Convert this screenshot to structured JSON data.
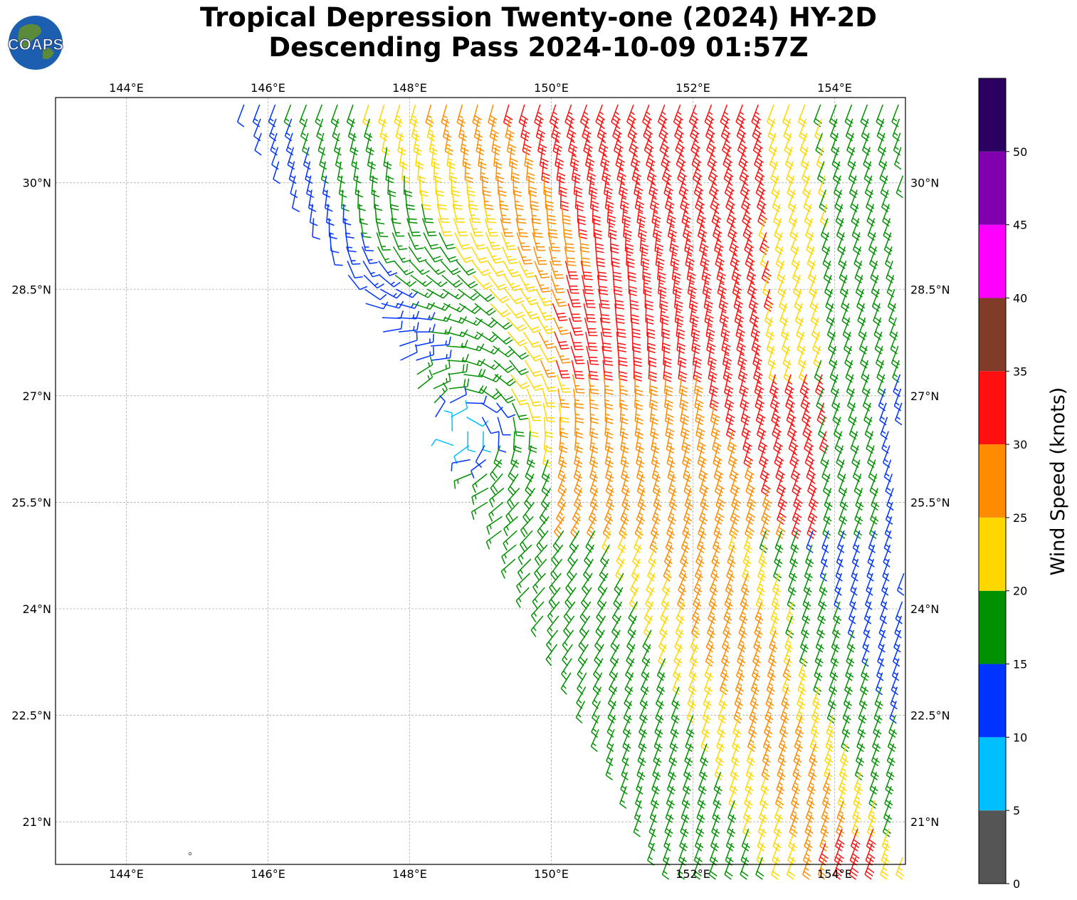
{
  "title": {
    "line1": "Tropical Depression Twenty-one (2024) HY-2D",
    "line2": "Descending Pass 2024-10-09 01:57Z"
  },
  "logo": {
    "text": "COAPS",
    "icon": "globe-icon"
  },
  "map": {
    "lon_range": [
      143,
      155
    ],
    "lat_range": [
      20.4,
      31.2
    ],
    "gridlines": true,
    "lon_ticks": [
      144,
      146,
      148,
      150,
      152,
      154
    ],
    "lon_tick_labels": [
      "144°E",
      "146°E",
      "148°E",
      "150°E",
      "152°E",
      "154°E"
    ],
    "lat_ticks": [
      21,
      22.5,
      24,
      25.5,
      27,
      28.5,
      30
    ],
    "lat_tick_labels": [
      "21°N",
      "22.5°N",
      "24°N",
      "25.5°N",
      "27°N",
      "28.5°N",
      "30°N"
    ],
    "island_marker": {
      "lon": 144.9,
      "lat": 20.55
    }
  },
  "colorbar": {
    "label": "Wind Speed (knots)",
    "tick_labels": [
      "0",
      "5",
      "10",
      "15",
      "20",
      "25",
      "30",
      "35",
      "40",
      "45",
      "50"
    ],
    "bins": [
      {
        "min": 0,
        "max": 5,
        "color": "#555555"
      },
      {
        "min": 5,
        "max": 10,
        "color": "#00bfff"
      },
      {
        "min": 10,
        "max": 15,
        "color": "#0033ff"
      },
      {
        "min": 15,
        "max": 20,
        "color": "#009000"
      },
      {
        "min": 20,
        "max": 25,
        "color": "#ffd700"
      },
      {
        "min": 25,
        "max": 30,
        "color": "#ff8c00"
      },
      {
        "min": 30,
        "max": 35,
        "color": "#ff0f0f"
      },
      {
        "min": 35,
        "max": 40,
        "color": "#803c28"
      },
      {
        "min": 40,
        "max": 45,
        "color": "#ff00ff"
      },
      {
        "min": 45,
        "max": 50,
        "color": "#8000b0"
      },
      {
        "min": 50,
        "max": 55,
        "color": "#2a0060"
      }
    ]
  },
  "wind_field": {
    "center": {
      "lon": 148.7,
      "lat": 26.5
    },
    "swath_west_edge": [
      {
        "lat": 31.2,
        "lon": 145.6
      },
      {
        "lat": 26.8,
        "lon": 148.3
      },
      {
        "lat": 25.7,
        "lon": 149.0
      },
      {
        "lat": 20.4,
        "lon": 151.6
      }
    ],
    "speed_bands_knots": [
      {
        "region": "northwest swath edge",
        "min": 10,
        "max": 15
      },
      {
        "region": "circulation center",
        "min": 5,
        "max": 10
      },
      {
        "region": "west of center",
        "min": 15,
        "max": 20
      },
      {
        "region": "central band",
        "min": 20,
        "max": 30
      },
      {
        "region": "north maximum near 150-152E 27.5-28.9N",
        "min": 30,
        "max": 35
      },
      {
        "region": "southeast maximum near 154E 20.5N",
        "min": 30,
        "max": 35
      },
      {
        "region": "east edge",
        "min": 10,
        "max": 20
      }
    ]
  }
}
